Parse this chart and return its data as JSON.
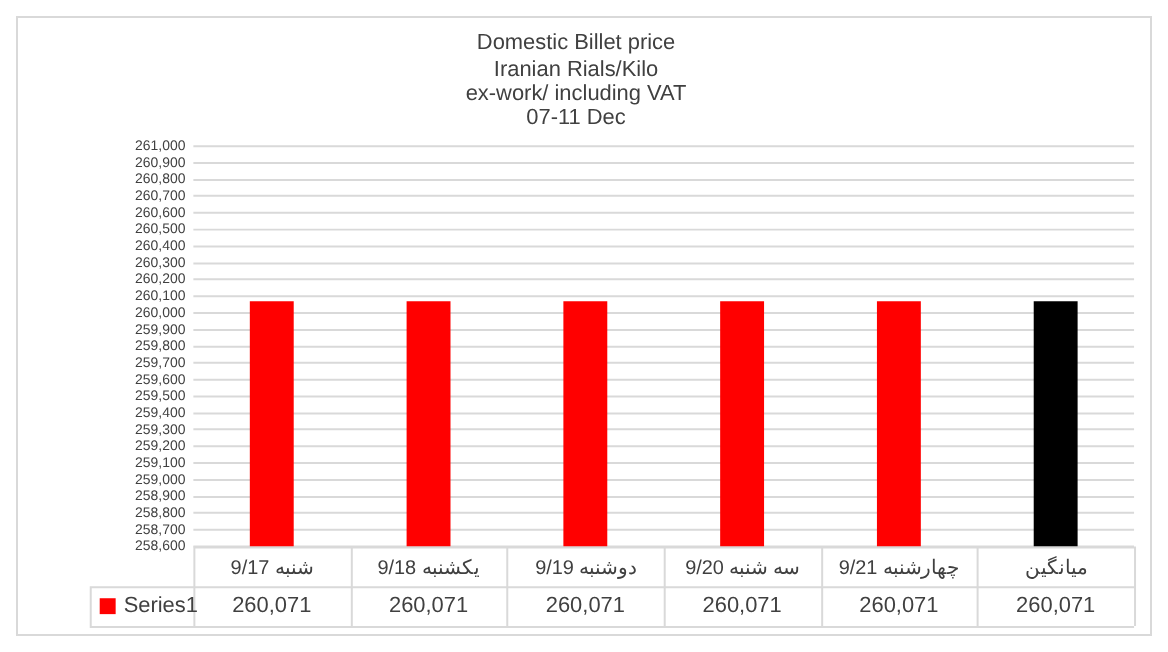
{
  "chart_data": {
    "type": "bar",
    "title": "Domestic Billet price",
    "subtitle": "Iranian Rials/Kilo\nex-work/ including VAT\n07-11 Dec",
    "categories": [
      "9/17 شنبه",
      "9/18 یکشنبه",
      "9/19 دوشنبه",
      "9/20 سه شنبه",
      "9/21 چهارشنبه",
      "میانگین"
    ],
    "series": [
      {
        "name": "Series1",
        "color": "#ff0000",
        "colors": [
          "#ff0000",
          "#ff0000",
          "#ff0000",
          "#ff0000",
          "#ff0000",
          "#000000"
        ],
        "values": [
          260071,
          260071,
          260071,
          260071,
          260071,
          260071
        ],
        "value_labels": [
          "260,071",
          "260,071",
          "260,071",
          "260,071",
          "260,071",
          "260,071"
        ]
      }
    ],
    "ylim": [
      258600,
      261000
    ],
    "yticks": [
      {
        "value": 258600,
        "label": "258,600"
      },
      {
        "value": 258700,
        "label": "258,700"
      },
      {
        "value": 258800,
        "label": "258,800"
      },
      {
        "value": 258900,
        "label": "258,900"
      },
      {
        "value": 259000,
        "label": "259,000"
      },
      {
        "value": 259100,
        "label": "259,100"
      },
      {
        "value": 259200,
        "label": "259,200"
      },
      {
        "value": 259300,
        "label": "259,300"
      },
      {
        "value": 259400,
        "label": "259,400"
      },
      {
        "value": 259500,
        "label": "259,500"
      },
      {
        "value": 259600,
        "label": "259,600"
      },
      {
        "value": 259700,
        "label": "259,700"
      },
      {
        "value": 259800,
        "label": "259,800"
      },
      {
        "value": 259900,
        "label": "259,900"
      },
      {
        "value": 260000,
        "label": "260,000"
      },
      {
        "value": 260100,
        "label": "260,100"
      },
      {
        "value": 260200,
        "label": "260,200"
      },
      {
        "value": 260300,
        "label": "260,300"
      },
      {
        "value": 260400,
        "label": "260,400"
      },
      {
        "value": 260500,
        "label": "260,500"
      },
      {
        "value": 260600,
        "label": "260,600"
      },
      {
        "value": 260700,
        "label": "260,700"
      },
      {
        "value": 260800,
        "label": "260,800"
      },
      {
        "value": 260900,
        "label": "260,900"
      },
      {
        "value": 261000,
        "label": "261,000"
      }
    ],
    "grid": "y",
    "legend": "bottom"
  }
}
